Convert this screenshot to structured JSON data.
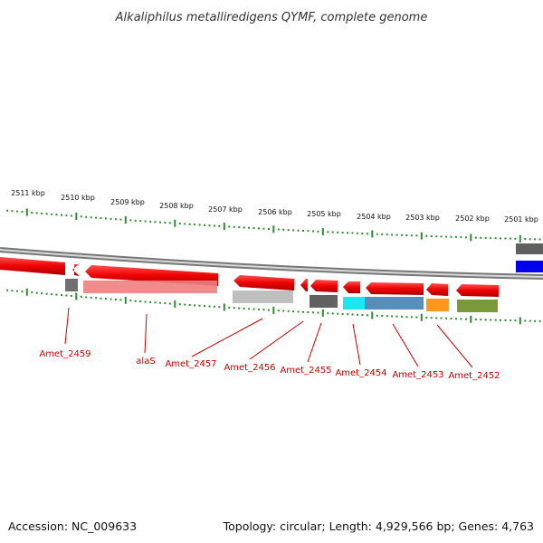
{
  "title": "Alkaliphilus metalliredigens QYMF, complete genome",
  "footer": {
    "accession": "Accession: NC_009633",
    "summary": "Topology: circular; Length: 4,929,566 bp; Genes: 4,763"
  },
  "scale": {
    "unit": "kbp",
    "labels": [
      "2511 kbp",
      "2510 kbp",
      "2509 kbp",
      "2508 kbp",
      "2507 kbp",
      "2506 kbp",
      "2505 kbp",
      "2504 kbp",
      "2503 kbp",
      "2502 kbp",
      "2501 kbp"
    ]
  },
  "colors": {
    "tick": "#2e8b2e",
    "backbone": "#888888",
    "gene_label": "#cc0000",
    "forward_gene": "#ff0000",
    "reverse_gene": "#ff0000"
  },
  "gene_labels": [
    "Amet_2459",
    "alaS",
    "Amet_2457",
    "Amet_2456",
    "Amet_2455",
    "Amet_2454",
    "Amet_2453",
    "Amet_2452"
  ],
  "tracks": {
    "cog_colors": [
      "#606060",
      "#f08080",
      "#b8b8b8",
      "#505050",
      "#00e5ee",
      "#4682b4",
      "#ff8c00",
      "#6b8e23"
    ],
    "top_right_colors": [
      "#606060",
      "#0000ee"
    ]
  }
}
